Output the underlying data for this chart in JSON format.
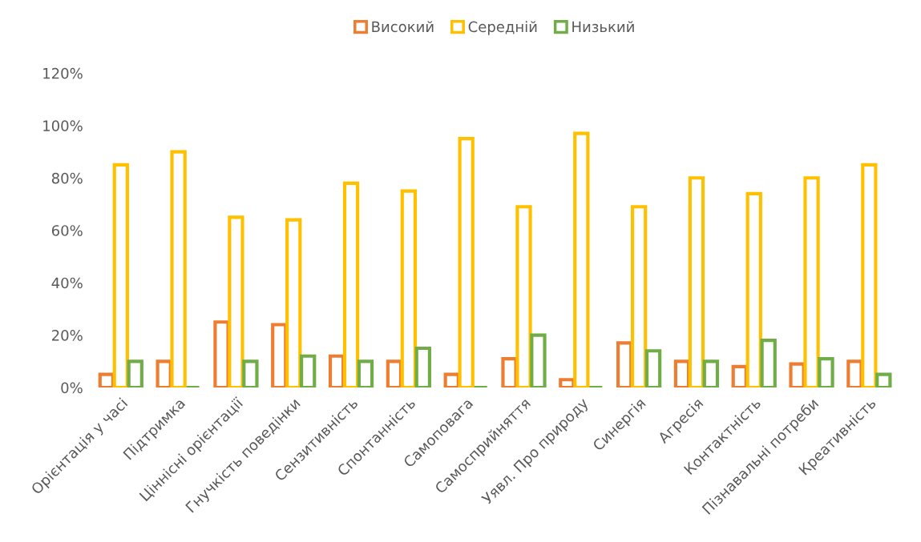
{
  "chart_data": {
    "type": "bar",
    "categories": [
      "Орієнтація у часі",
      "Підтримка",
      "Ціннісні орієнтації",
      "Гнучкість поведінки",
      "Сензитивність",
      "Спонтанність",
      "Самоповага",
      "Самосприйняття",
      "Уявл. Про природу",
      "Синергія",
      "Агресія",
      "Контактність",
      "Пізнавальні потреби",
      "Креативність"
    ],
    "series": [
      {
        "name": "Високий",
        "color": "#ed7d31",
        "values": [
          5,
          10,
          25,
          24,
          12,
          10,
          5,
          11,
          3,
          17,
          10,
          8,
          9,
          10
        ]
      },
      {
        "name": "Середній",
        "color": "#ffc000",
        "values": [
          85,
          90,
          65,
          64,
          78,
          75,
          95,
          69,
          97,
          69,
          80,
          74,
          80,
          85
        ]
      },
      {
        "name": "Низький",
        "color": "#70ad47",
        "values": [
          10,
          0,
          10,
          12,
          10,
          15,
          0,
          20,
          0,
          14,
          10,
          18,
          11,
          5
        ]
      }
    ],
    "ylim": [
      0,
      120
    ],
    "yticks": [
      {
        "value": 0,
        "label": "0%"
      },
      {
        "value": 20,
        "label": "20%"
      },
      {
        "value": 40,
        "label": "40%"
      },
      {
        "value": 60,
        "label": "60%"
      },
      {
        "value": 80,
        "label": "80%"
      },
      {
        "value": 100,
        "label": "100%"
      },
      {
        "value": 120,
        "label": "120%"
      }
    ],
    "grid": false,
    "legend": "top"
  }
}
